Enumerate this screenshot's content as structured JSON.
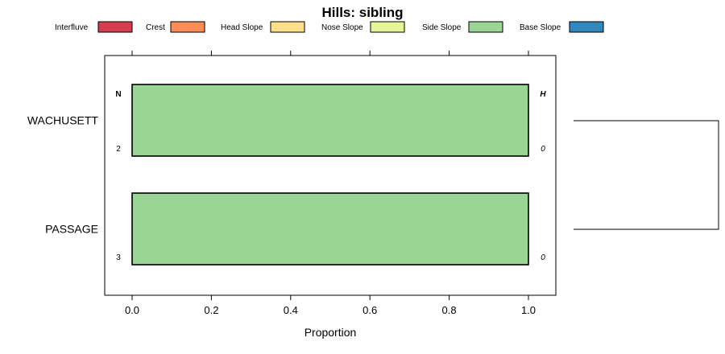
{
  "chart_data": {
    "type": "bar",
    "orientation": "horizontal",
    "stacked": true,
    "title": "Hills: sibling",
    "xlabel": "Proportion",
    "ylabel": "",
    "xlim": [
      0,
      1
    ],
    "xticks": [
      "0.0",
      "0.2",
      "0.4",
      "0.6",
      "0.8",
      "1.0"
    ],
    "xtick_values": [
      0,
      0.2,
      0.4,
      0.6,
      0.8,
      1.0
    ],
    "categories": [
      "WACHUSETT",
      "PASSAGE"
    ],
    "series": [
      {
        "name": "Interfluve",
        "color": "#D53E4F",
        "values": [
          0,
          0
        ]
      },
      {
        "name": "Crest",
        "color": "#FC8D59",
        "values": [
          0,
          0
        ]
      },
      {
        "name": "Head Slope",
        "color": "#FEE08B",
        "values": [
          0,
          0
        ]
      },
      {
        "name": "Nose Slope",
        "color": "#E6F598",
        "values": [
          0,
          0
        ]
      },
      {
        "name": "Side Slope",
        "color": "#99D594",
        "values": [
          1.0,
          1.0
        ]
      },
      {
        "name": "Base Slope",
        "color": "#3288BD",
        "values": [
          0,
          0
        ]
      }
    ],
    "legend_position": "top",
    "annotations": {
      "n_header": "N",
      "h_header": "H",
      "n_values": [
        "2",
        "3"
      ],
      "h_values": [
        "0",
        "0"
      ]
    },
    "dendrogram": "right"
  }
}
